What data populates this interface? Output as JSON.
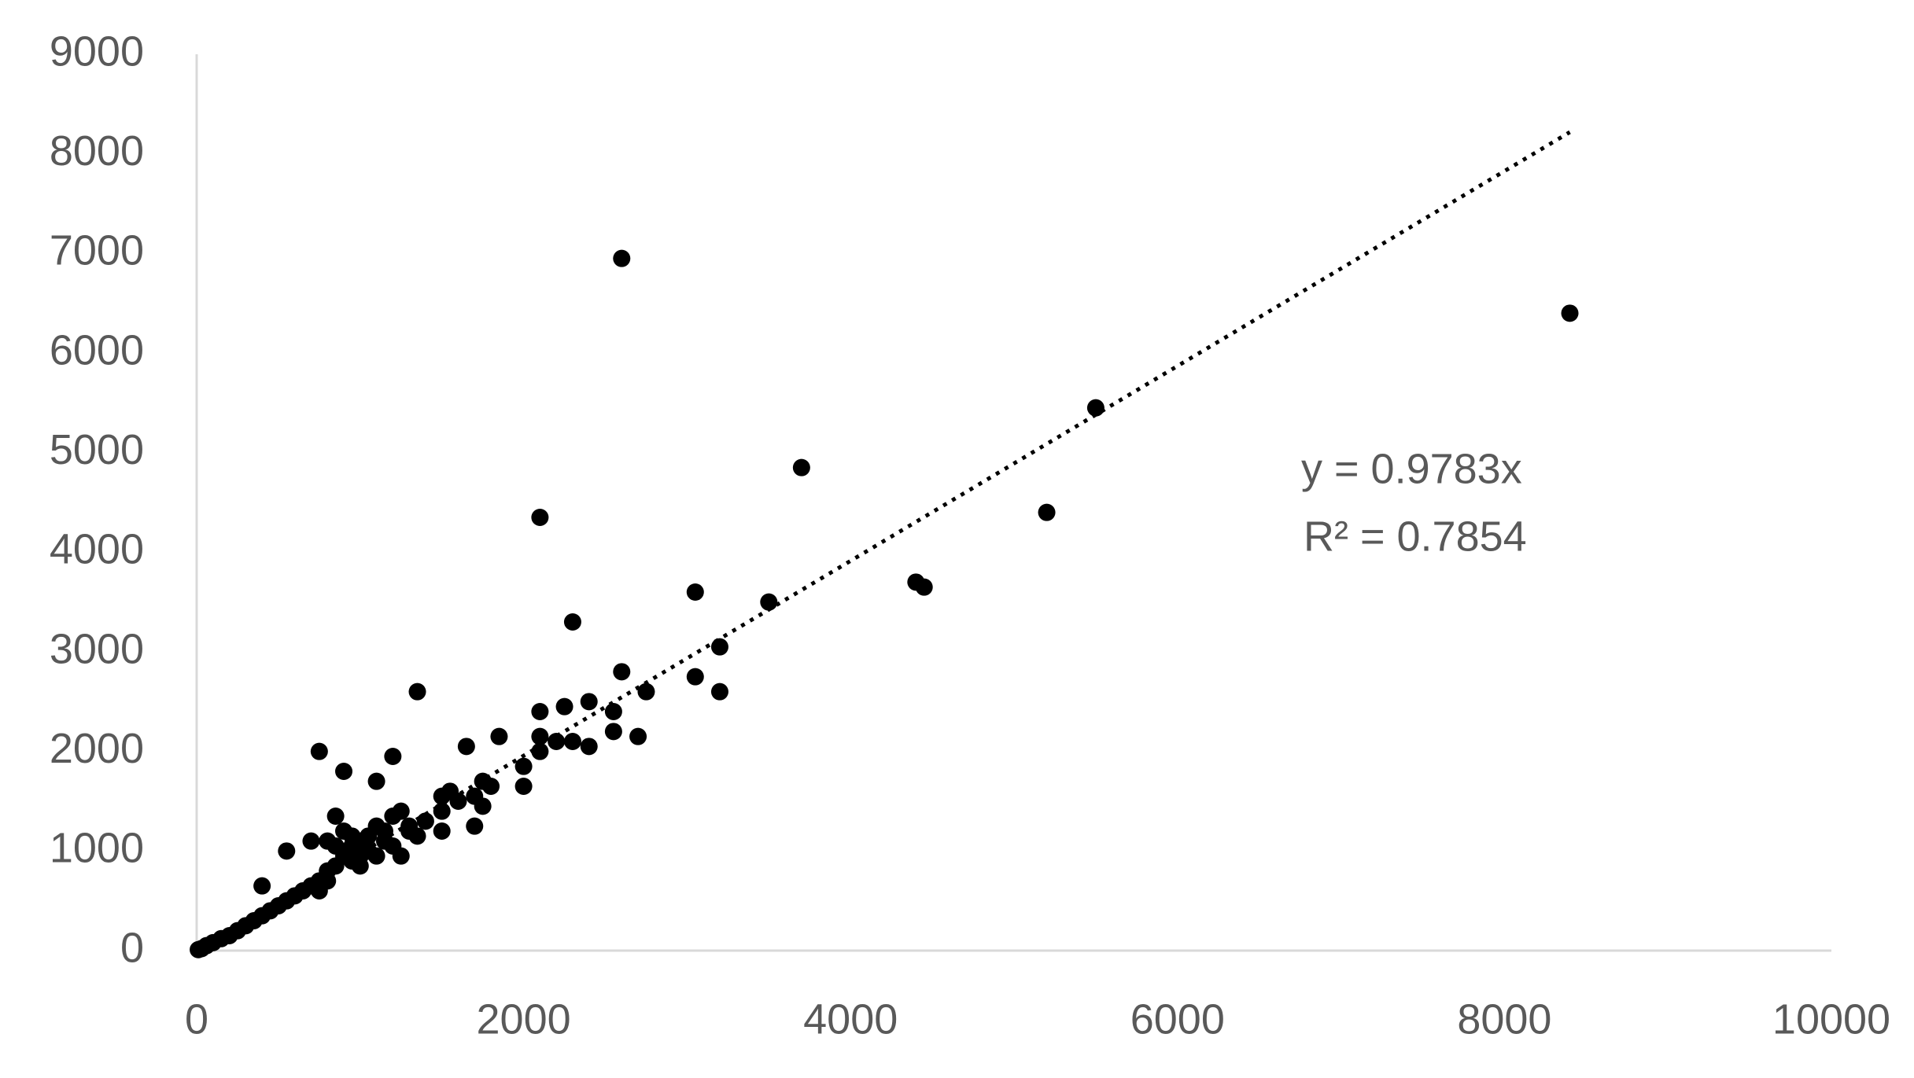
{
  "chart_data": {
    "type": "scatter",
    "x": [
      2600,
      8400,
      5500,
      3700,
      2100,
      5200,
      4400,
      4450,
      3050,
      3500,
      2300,
      3200,
      3050,
      3200,
      2600,
      1350,
      2750,
      2700,
      2100,
      2250,
      2400,
      2550,
      2550,
      2300,
      2400,
      2200,
      2100,
      2100,
      2000,
      2000,
      1850,
      1650,
      1200,
      750,
      900,
      1100,
      850,
      550,
      700,
      400,
      1500,
      1550,
      1600,
      1700,
      1750,
      1800,
      1700,
      1750,
      1500,
      1500,
      1400,
      1300,
      1250,
      1200,
      1150,
      1100,
      1050,
      1000,
      950,
      900,
      850,
      800,
      750,
      700,
      650,
      600,
      550,
      500,
      450,
      400,
      350,
      300,
      250,
      200,
      150,
      100,
      60,
      30,
      10,
      1250,
      1350,
      1200,
      1100,
      950,
      900,
      800,
      850,
      1000,
      1150,
      1300,
      750,
      800,
      950,
      1050,
      1000
    ],
    "values": [
      6950,
      6400,
      5450,
      4850,
      4350,
      4400,
      3700,
      3650,
      3600,
      3500,
      3300,
      3050,
      2750,
      2600,
      2800,
      2600,
      2600,
      2150,
      2400,
      2450,
      2500,
      2400,
      2200,
      2100,
      2050,
      2100,
      2150,
      2000,
      1850,
      1650,
      2150,
      2050,
      1950,
      2000,
      1800,
      1700,
      1350,
      1000,
      1100,
      650,
      1550,
      1600,
      1500,
      1550,
      1700,
      1650,
      1250,
      1450,
      1200,
      1400,
      1300,
      1250,
      1400,
      1350,
      1100,
      1250,
      1000,
      1100,
      1050,
      950,
      850,
      800,
      700,
      650,
      600,
      550,
      500,
      450,
      400,
      350,
      300,
      250,
      200,
      150,
      120,
      80,
      50,
      20,
      10,
      950,
      1150,
      1050,
      950,
      900,
      1200,
      1100,
      1050,
      850,
      1200,
      1200,
      600,
      700,
      1150,
      1150,
      950
    ],
    "color": "#000000",
    "trendline": {
      "x": [
        0,
        8400
      ],
      "values": [
        0,
        8218
      ],
      "color": "#000000"
    },
    "annotations": [
      "y = 0.9783x",
      "R² = 0.7854"
    ],
    "xlim": [
      0,
      10000
    ],
    "xticks": [
      0,
      2000,
      4000,
      6000,
      8000,
      10000
    ],
    "ylim": [
      0,
      9000
    ],
    "yticks": [
      0,
      1000,
      2000,
      3000,
      4000,
      5000,
      6000,
      7000,
      8000,
      9000
    ],
    "grid": false
  }
}
